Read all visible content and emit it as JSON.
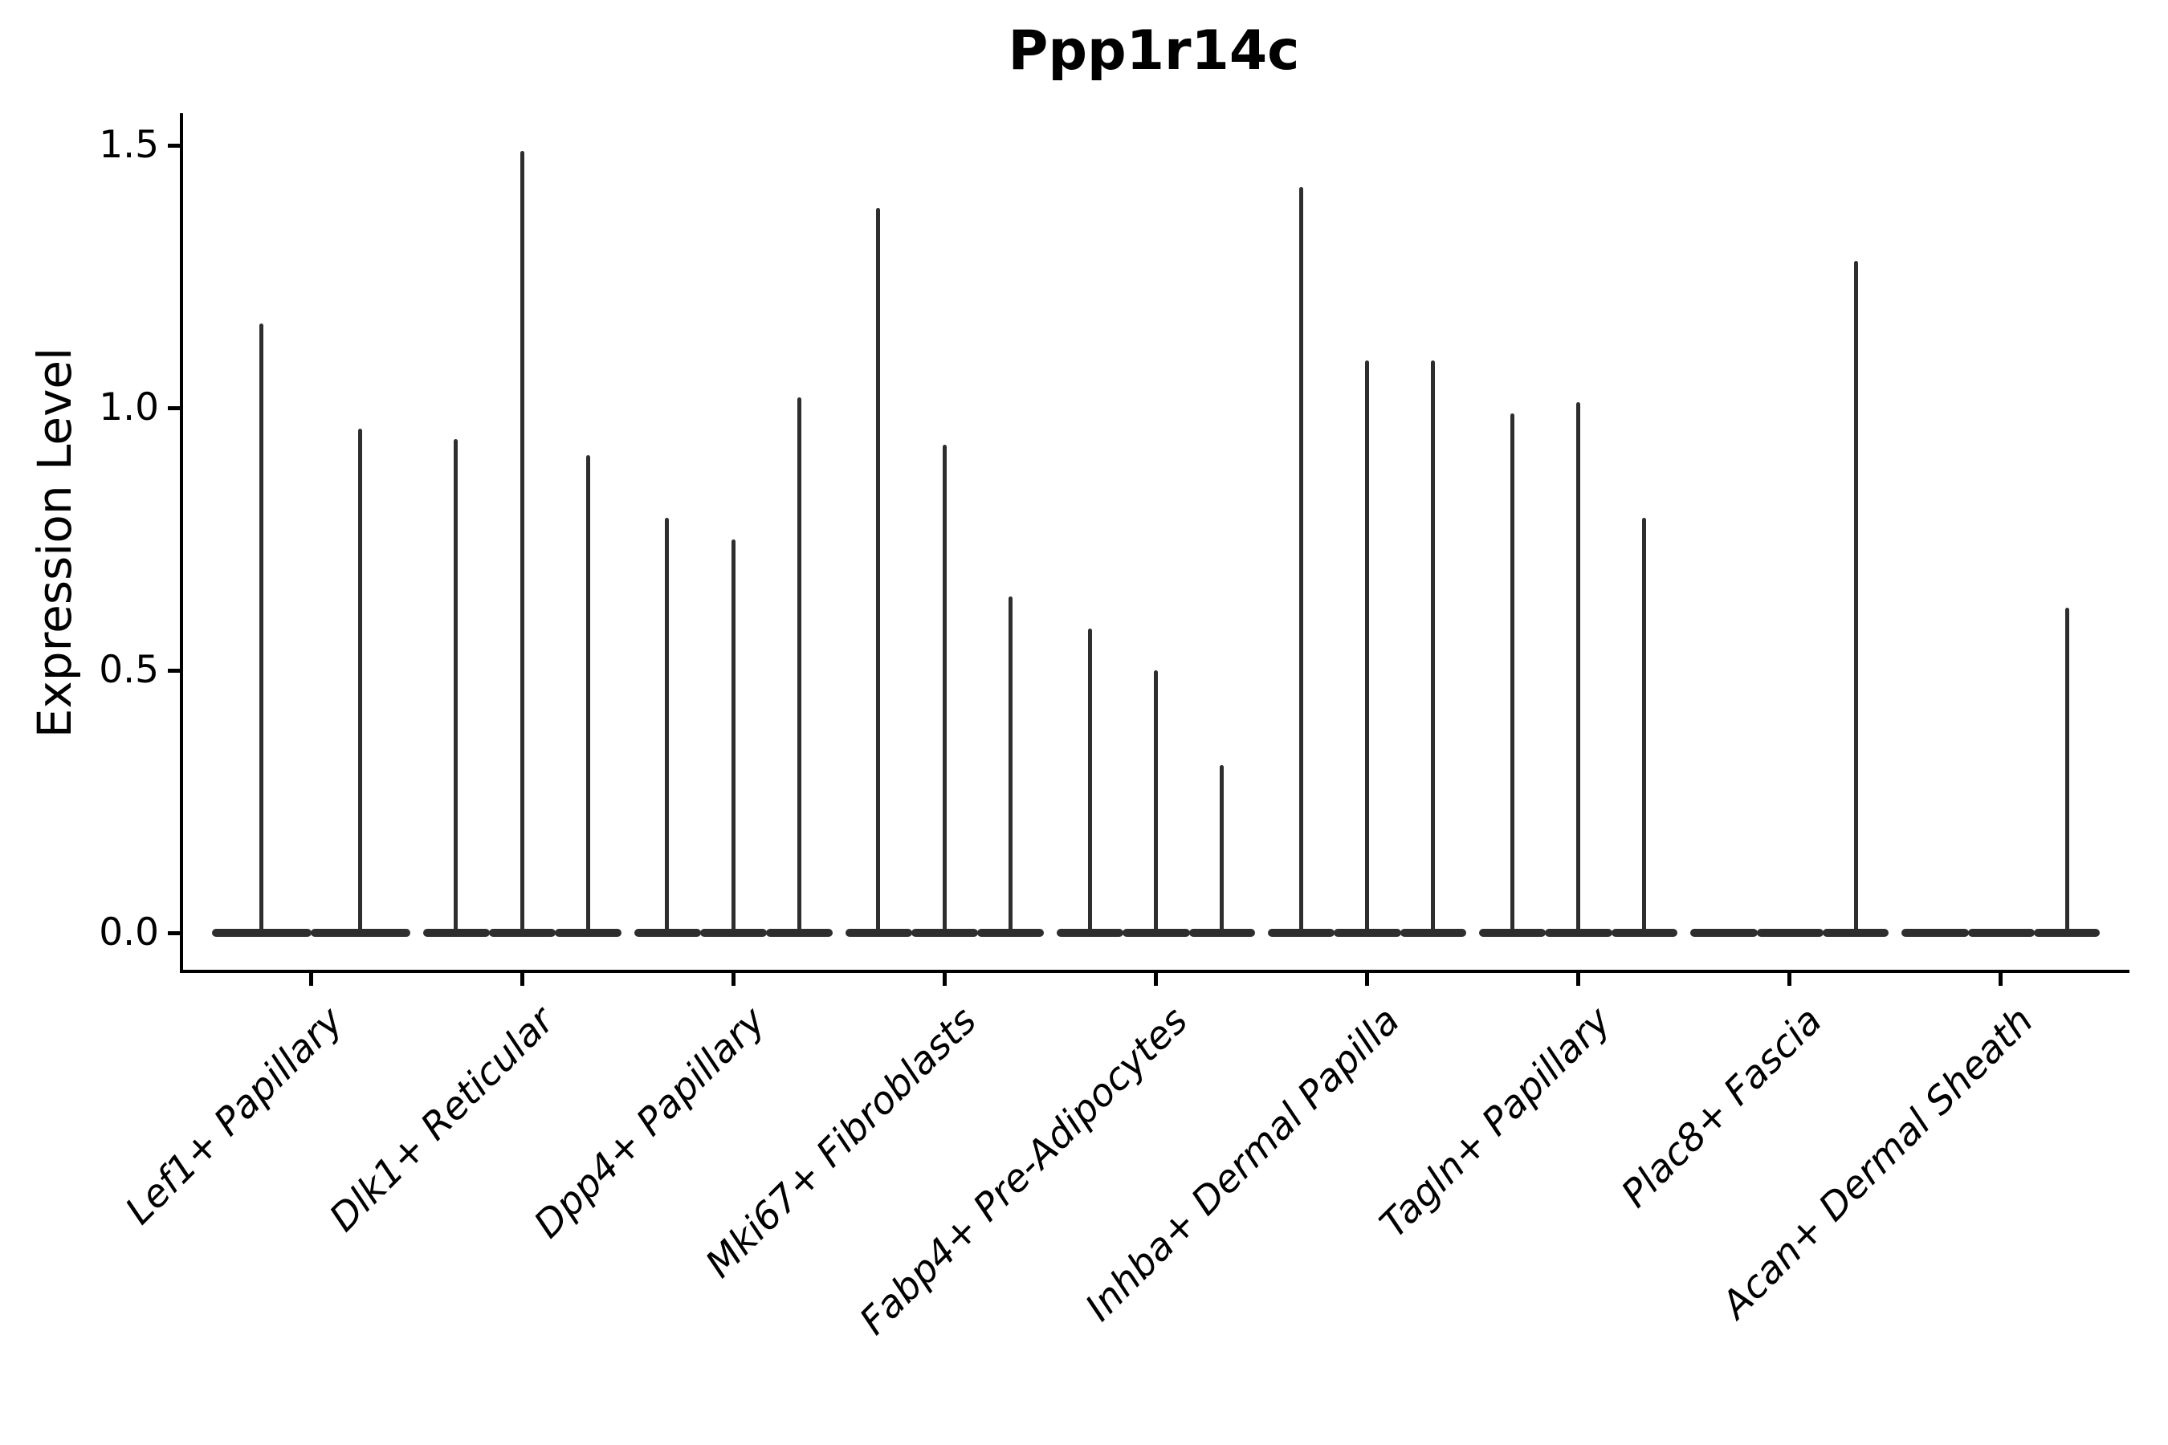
{
  "figure": {
    "title": "Ppp1r14c",
    "y_axis_label": "Expression Level"
  },
  "chart_data": {
    "type": "violin",
    "title": "Ppp1r14c",
    "xlabel": "",
    "ylabel": "Expression Level",
    "ylim": [
      -0.07,
      1.58
    ],
    "yticks": [
      0.0,
      0.5,
      1.0,
      1.5
    ],
    "ytick_labels": [
      "0.0",
      "0.5",
      "1.0",
      "1.5"
    ],
    "grid": false,
    "legend": "none",
    "violin_color": "#2e2e2e",
    "axis_color": "#000000",
    "shape_note": "Each violin is extremely bottom-heavy: a wide flat band at expression 0 with a single thin vertical spike rising to the listed maximum. Violins with maximum 0 are flat bands only.",
    "groups": [
      {
        "label": "Lef1+ Papillary",
        "violin_maxima": [
          1.16,
          0.96
        ]
      },
      {
        "label": "Dlk1+ Reticular",
        "violin_maxima": [
          0.94,
          1.49,
          0.91
        ]
      },
      {
        "label": "Dpp4+ Papillary",
        "violin_maxima": [
          0.79,
          0.75,
          1.02
        ]
      },
      {
        "label": "Mki67+ Fibroblasts",
        "violin_maxima": [
          1.38,
          0.93,
          0.64
        ]
      },
      {
        "label": "Fabp4+ Pre-Adipocytes",
        "violin_maxima": [
          0.58,
          0.5,
          0.32
        ]
      },
      {
        "label": "Inhba+ Dermal Papilla",
        "violin_maxima": [
          1.42,
          1.09,
          1.09
        ]
      },
      {
        "label": "Tagln+ Papillary",
        "violin_maxima": [
          0.99,
          1.01,
          0.79
        ]
      },
      {
        "label": "Plac8+ Fascia",
        "violin_maxima": [
          0,
          0,
          1.28
        ]
      },
      {
        "label": "Acan+ Dermal Sheath",
        "violin_maxima": [
          0,
          0,
          0.62
        ]
      }
    ]
  }
}
